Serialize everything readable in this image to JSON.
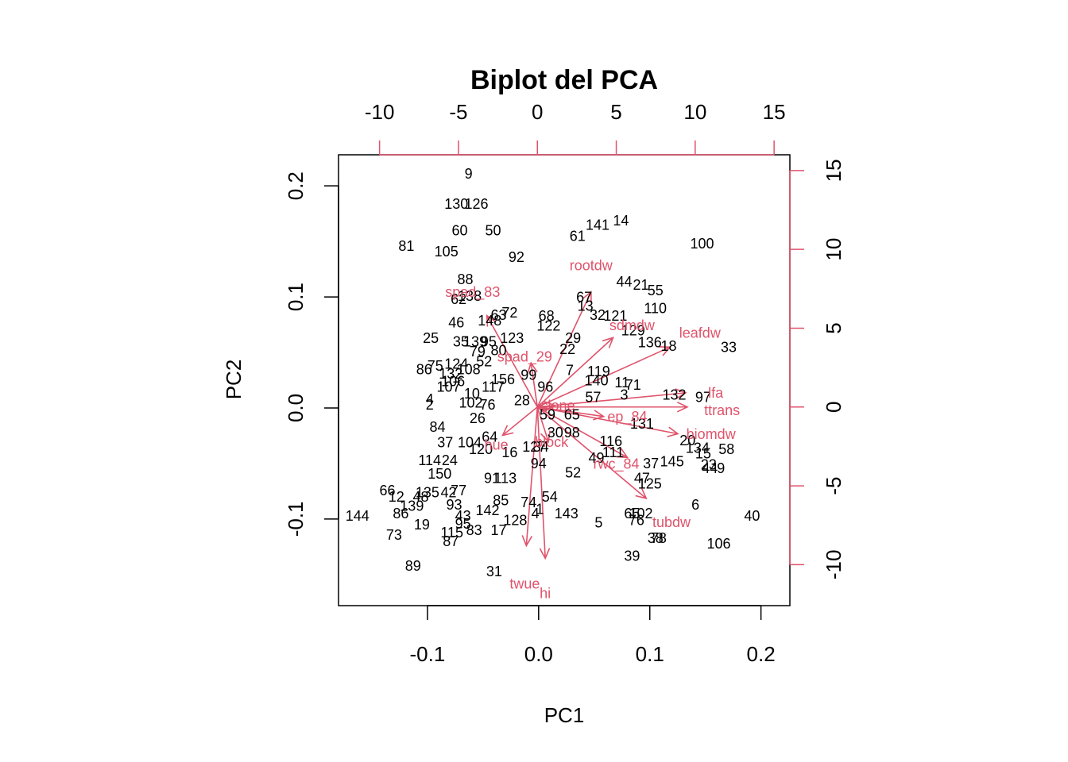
{
  "chart_data": {
    "type": "scatter",
    "title": "Biplot del PCA",
    "xlabel": "PC1",
    "ylabel": "PC2",
    "xlim": [
      -0.18,
      0.226
    ],
    "ylim": [
      -0.178,
      0.228
    ],
    "xticks": [
      -0.1,
      0.0,
      0.1,
      0.2
    ],
    "xtick_labels": [
      "-0.1",
      "0.0",
      "0.1",
      "0.2"
    ],
    "yticks": [
      -0.1,
      0.0,
      0.1,
      0.2
    ],
    "ytick_labels": [
      "-0.1",
      "0.0",
      "0.1",
      "0.2"
    ],
    "top_axis": {
      "ticks": [
        -10,
        -5,
        0,
        5,
        10,
        15
      ],
      "labels": [
        "-10",
        "-5",
        "0",
        "5",
        "10",
        "15"
      ],
      "lim": [
        -12.6,
        16.0
      ]
    },
    "right_axis": {
      "ticks": [
        -10,
        -5,
        0,
        5,
        10,
        15
      ],
      "labels": [
        "-10",
        "-5",
        "0",
        "5",
        "10",
        "15"
      ],
      "lim": [
        -12.6,
        16.0
      ]
    },
    "colors": {
      "points": "#000000",
      "loadings": "#DF536B"
    },
    "observations": [
      {
        "label": "9",
        "x": -0.063,
        "y": 0.211
      },
      {
        "label": "130",
        "x": -0.074,
        "y": 0.184
      },
      {
        "label": "126",
        "x": -0.056,
        "y": 0.184
      },
      {
        "label": "60",
        "x": -0.071,
        "y": 0.16
      },
      {
        "label": "50",
        "x": -0.041,
        "y": 0.16
      },
      {
        "label": "81",
        "x": -0.119,
        "y": 0.146
      },
      {
        "label": "105",
        "x": -0.083,
        "y": 0.141
      },
      {
        "label": "92",
        "x": -0.02,
        "y": 0.136
      },
      {
        "label": "61",
        "x": 0.035,
        "y": 0.155
      },
      {
        "label": "141",
        "x": 0.053,
        "y": 0.165
      },
      {
        "label": "14",
        "x": 0.074,
        "y": 0.169
      },
      {
        "label": "100",
        "x": 0.147,
        "y": 0.148
      },
      {
        "label": "88",
        "x": -0.066,
        "y": 0.116
      },
      {
        "label": "44",
        "x": 0.077,
        "y": 0.114
      },
      {
        "label": "21",
        "x": 0.092,
        "y": 0.111
      },
      {
        "label": "55",
        "x": 0.105,
        "y": 0.106
      },
      {
        "label": "62",
        "x": -0.072,
        "y": 0.098
      },
      {
        "label": "138",
        "x": -0.062,
        "y": 0.101
      },
      {
        "label": "67",
        "x": 0.041,
        "y": 0.1
      },
      {
        "label": "13",
        "x": 0.042,
        "y": 0.092
      },
      {
        "label": "110",
        "x": 0.105,
        "y": 0.09
      },
      {
        "label": "63",
        "x": -0.036,
        "y": 0.084
      },
      {
        "label": "72",
        "x": -0.026,
        "y": 0.086
      },
      {
        "label": "68",
        "x": 0.007,
        "y": 0.083
      },
      {
        "label": "32",
        "x": 0.053,
        "y": 0.084
      },
      {
        "label": "121",
        "x": 0.069,
        "y": 0.083
      },
      {
        "label": "46",
        "x": -0.074,
        "y": 0.077
      },
      {
        "label": "148",
        "x": -0.044,
        "y": 0.079
      },
      {
        "label": "122",
        "x": 0.009,
        "y": 0.074
      },
      {
        "label": "129",
        "x": 0.085,
        "y": 0.07
      },
      {
        "label": "25",
        "x": -0.097,
        "y": 0.063
      },
      {
        "label": "35",
        "x": -0.07,
        "y": 0.06
      },
      {
        "label": "139",
        "x": -0.057,
        "y": 0.06
      },
      {
        "label": "95",
        "x": -0.045,
        "y": 0.06
      },
      {
        "label": "123",
        "x": -0.024,
        "y": 0.063
      },
      {
        "label": "29",
        "x": 0.031,
        "y": 0.063
      },
      {
        "label": "136",
        "x": 0.1,
        "y": 0.059
      },
      {
        "label": "18",
        "x": 0.117,
        "y": 0.056
      },
      {
        "label": "33",
        "x": 0.171,
        "y": 0.055
      },
      {
        "label": "79",
        "x": -0.055,
        "y": 0.051
      },
      {
        "label": "80",
        "x": -0.036,
        "y": 0.052
      },
      {
        "label": "22",
        "x": 0.026,
        "y": 0.053
      },
      {
        "label": "52",
        "x": -0.049,
        "y": 0.042
      },
      {
        "label": "75",
        "x": -0.093,
        "y": 0.038
      },
      {
        "label": "124",
        "x": -0.074,
        "y": 0.04
      },
      {
        "label": "86",
        "x": -0.103,
        "y": 0.035
      },
      {
        "label": "108",
        "x": -0.063,
        "y": 0.035
      },
      {
        "label": "132",
        "x": -0.079,
        "y": 0.031
      },
      {
        "label": "7",
        "x": 0.028,
        "y": 0.034
      },
      {
        "label": "119",
        "x": 0.054,
        "y": 0.033
      },
      {
        "label": "99",
        "x": -0.009,
        "y": 0.03
      },
      {
        "label": "156",
        "x": -0.032,
        "y": 0.026
      },
      {
        "label": "140",
        "x": 0.052,
        "y": 0.025
      },
      {
        "label": "11",
        "x": 0.075,
        "y": 0.023
      },
      {
        "label": "71",
        "x": 0.085,
        "y": 0.021
      },
      {
        "label": "106",
        "x": -0.077,
        "y": 0.024
      },
      {
        "label": "117",
        "x": -0.041,
        "y": 0.019
      },
      {
        "label": "96",
        "x": 0.006,
        "y": 0.019
      },
      {
        "label": "107",
        "x": -0.081,
        "y": 0.019
      },
      {
        "label": "10",
        "x": -0.06,
        "y": 0.013
      },
      {
        "label": "3",
        "x": 0.077,
        "y": 0.012
      },
      {
        "label": "132",
        "x": 0.122,
        "y": 0.012
      },
      {
        "label": "97",
        "x": 0.148,
        "y": 0.01
      },
      {
        "label": "57",
        "x": 0.049,
        "y": 0.01
      },
      {
        "label": "28",
        "x": -0.015,
        "y": 0.007
      },
      {
        "label": "4",
        "x": -0.098,
        "y": 0.008
      },
      {
        "label": "2",
        "x": -0.098,
        "y": 0.003
      },
      {
        "label": "102",
        "x": -0.061,
        "y": 0.005
      },
      {
        "label": "76",
        "x": -0.046,
        "y": 0.003
      },
      {
        "label": "59",
        "x": 0.008,
        "y": -0.006
      },
      {
        "label": "65",
        "x": 0.03,
        "y": -0.006
      },
      {
        "label": "131",
        "x": 0.093,
        "y": -0.014
      },
      {
        "label": "26",
        "x": -0.055,
        "y": -0.009
      },
      {
        "label": "84",
        "x": -0.091,
        "y": -0.017
      },
      {
        "label": "30",
        "x": 0.015,
        "y": -0.022
      },
      {
        "label": "98",
        "x": 0.03,
        "y": -0.022
      },
      {
        "label": "64",
        "x": -0.044,
        "y": -0.026
      },
      {
        "label": "37",
        "x": -0.084,
        "y": -0.031
      },
      {
        "label": "104",
        "x": -0.062,
        "y": -0.031
      },
      {
        "label": "120",
        "x": -0.052,
        "y": -0.037
      },
      {
        "label": "16",
        "x": -0.026,
        "y": -0.04
      },
      {
        "label": "127",
        "x": -0.004,
        "y": -0.035
      },
      {
        "label": "34",
        "x": 0.002,
        "y": -0.035
      },
      {
        "label": "116",
        "x": 0.065,
        "y": -0.03
      },
      {
        "label": "20",
        "x": 0.134,
        "y": -0.029
      },
      {
        "label": "134",
        "x": 0.143,
        "y": -0.036
      },
      {
        "label": "58",
        "x": 0.169,
        "y": -0.037
      },
      {
        "label": "111",
        "x": 0.067,
        "y": -0.04
      },
      {
        "label": "15",
        "x": 0.148,
        "y": -0.041
      },
      {
        "label": "114",
        "x": -0.098,
        "y": -0.047
      },
      {
        "label": "24",
        "x": -0.08,
        "y": -0.047
      },
      {
        "label": "49",
        "x": 0.052,
        "y": -0.045
      },
      {
        "label": "37",
        "x": 0.101,
        "y": -0.05
      },
      {
        "label": "145",
        "x": 0.12,
        "y": -0.048
      },
      {
        "label": "94",
        "x": 0.0,
        "y": -0.05
      },
      {
        "label": "23",
        "x": 0.153,
        "y": -0.051
      },
      {
        "label": "44",
        "x": 0.154,
        "y": -0.054
      },
      {
        "label": "9",
        "x": 0.164,
        "y": -0.054
      },
      {
        "label": "150",
        "x": -0.089,
        "y": -0.059
      },
      {
        "label": "52",
        "x": 0.031,
        "y": -0.058
      },
      {
        "label": "91",
        "x": -0.042,
        "y": -0.063
      },
      {
        "label": "113",
        "x": -0.03,
        "y": -0.063
      },
      {
        "label": "47",
        "x": 0.093,
        "y": -0.063
      },
      {
        "label": "125",
        "x": 0.1,
        "y": -0.068
      },
      {
        "label": "66",
        "x": -0.136,
        "y": -0.074
      },
      {
        "label": "12",
        "x": -0.128,
        "y": -0.08
      },
      {
        "label": "135",
        "x": -0.1,
        "y": -0.076
      },
      {
        "label": "42",
        "x": -0.081,
        "y": -0.076
      },
      {
        "label": "77",
        "x": -0.072,
        "y": -0.074
      },
      {
        "label": "48",
        "x": -0.106,
        "y": -0.08
      },
      {
        "label": "54",
        "x": 0.01,
        "y": -0.08
      },
      {
        "label": "139",
        "x": -0.114,
        "y": -0.088
      },
      {
        "label": "85",
        "x": -0.034,
        "y": -0.083
      },
      {
        "label": "74",
        "x": -0.009,
        "y": -0.085
      },
      {
        "label": "93",
        "x": -0.076,
        "y": -0.087
      },
      {
        "label": "142",
        "x": -0.046,
        "y": -0.092
      },
      {
        "label": "1",
        "x": 0.001,
        "y": -0.091
      },
      {
        "label": "86",
        "x": -0.124,
        "y": -0.095
      },
      {
        "label": "144",
        "x": -0.163,
        "y": -0.097
      },
      {
        "label": "43",
        "x": -0.068,
        "y": -0.097
      },
      {
        "label": "143",
        "x": 0.025,
        "y": -0.095
      },
      {
        "label": "4",
        "x": -0.003,
        "y": -0.095
      },
      {
        "label": "6",
        "x": 0.141,
        "y": -0.087
      },
      {
        "label": "40",
        "x": 0.192,
        "y": -0.097
      },
      {
        "label": "65",
        "x": 0.084,
        "y": -0.095
      },
      {
        "label": "102",
        "x": 0.092,
        "y": -0.095
      },
      {
        "label": "128",
        "x": -0.021,
        "y": -0.101
      },
      {
        "label": "76",
        "x": 0.088,
        "y": -0.101
      },
      {
        "label": "19",
        "x": -0.105,
        "y": -0.105
      },
      {
        "label": "5",
        "x": 0.054,
        "y": -0.103
      },
      {
        "label": "95",
        "x": -0.068,
        "y": -0.104
      },
      {
        "label": "83",
        "x": -0.058,
        "y": -0.11
      },
      {
        "label": "17",
        "x": -0.036,
        "y": -0.11
      },
      {
        "label": "73",
        "x": -0.13,
        "y": -0.114
      },
      {
        "label": "115",
        "x": -0.078,
        "y": -0.112
      },
      {
        "label": "78",
        "x": 0.108,
        "y": -0.117
      },
      {
        "label": "38",
        "x": 0.105,
        "y": -0.117
      },
      {
        "label": "87",
        "x": -0.079,
        "y": -0.12
      },
      {
        "label": "106",
        "x": 0.162,
        "y": -0.122
      },
      {
        "label": "39",
        "x": 0.084,
        "y": -0.133
      },
      {
        "label": "89",
        "x": -0.113,
        "y": -0.142
      },
      {
        "label": "31",
        "x": -0.04,
        "y": -0.147
      }
    ],
    "loadings": [
      {
        "label": "rootdw",
        "x": 3.4,
        "y": 7.3,
        "lx": 3.4,
        "ly": 9.0
      },
      {
        "label": "sdmdw",
        "x": 4.8,
        "y": 4.4,
        "lx": 6.0,
        "ly": 5.2
      },
      {
        "label": "leafdw",
        "x": 8.4,
        "y": 3.8,
        "lx": 10.3,
        "ly": 4.7
      },
      {
        "label": "lfa",
        "x": 9.4,
        "y": 0.9,
        "lx": 11.3,
        "ly": 0.9
      },
      {
        "label": "ttrans",
        "x": 9.5,
        "y": 0.0,
        "lx": 11.7,
        "ly": -0.2
      },
      {
        "label": "biomdw",
        "x": 8.9,
        "y": -1.7,
        "lx": 11.0,
        "ly": -1.7
      },
      {
        "label": "tubdw",
        "x": 6.9,
        "y": -5.8,
        "lx": 8.5,
        "ly": -7.3
      },
      {
        "label": "rwc_84",
        "x": 5.7,
        "y": -3.2,
        "lx": 5.0,
        "ly": -3.6
      },
      {
        "label": "ep_84",
        "x": 4.2,
        "y": -0.6,
        "lx": 5.7,
        "ly": -0.6
      },
      {
        "label": "spad_29",
        "x": -0.4,
        "y": 2.8,
        "lx": -0.8,
        "ly": 3.2
      },
      {
        "label": "spad_83",
        "x": -3.2,
        "y": 5.8,
        "lx": -4.1,
        "ly": 7.3
      },
      {
        "label": "twue",
        "x": -0.7,
        "y": -8.8,
        "lx": -0.8,
        "ly": -11.2
      },
      {
        "label": "hi",
        "x": 0.5,
        "y": -9.6,
        "lx": 0.5,
        "ly": -11.8
      },
      {
        "label": "block",
        "x": 0.7,
        "y": -2.2,
        "lx": 0.9,
        "ly": -2.2
      },
      {
        "label": "hue",
        "x": -2.2,
        "y": -1.8,
        "lx": -2.6,
        "ly": -2.4
      },
      {
        "label": "clone",
        "x": 1.1,
        "y": 0.1,
        "lx": 1.3,
        "ly": 0.1
      }
    ]
  }
}
